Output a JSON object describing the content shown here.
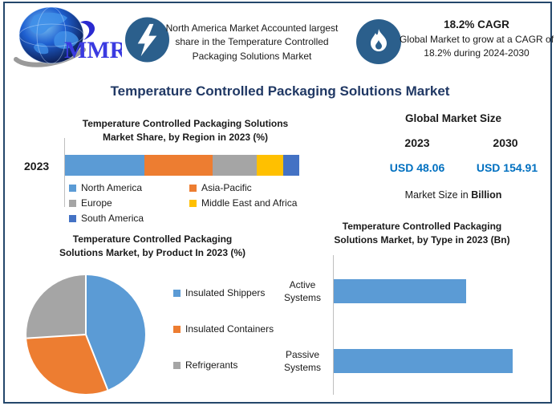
{
  "page": {
    "border_color": "#24476B",
    "background": "#FFFFFF"
  },
  "header": {
    "logo_text": "MMR",
    "icon_bg": "#2B5F8C",
    "banner1": {
      "icon": "lightning-icon",
      "text": "North America Market Accounted largest share in the Temperature Controlled Packaging Solutions Market"
    },
    "banner2": {
      "icon": "flame-icon",
      "title": "18.2% CAGR",
      "text": "Global Market to grow at a CAGR of 18.2% during 2024-2030"
    }
  },
  "main_title": "Temperature Controlled Packaging Solutions Market",
  "main_title_color": "#203864",
  "market_size": {
    "title": "Global Market Size",
    "year_left": "2023",
    "year_right": "2030",
    "value_left": "USD 48.06",
    "value_right": "USD 154.91",
    "value_color": "#0070C0",
    "note_prefix": "Market Size in ",
    "note_bold": "Billion"
  },
  "chart_data": [
    {
      "id": "region-share",
      "type": "bar",
      "subtype": "stacked-horizontal",
      "title": "Temperature Controlled Packaging Solutions Market Share, by Region in 2023 (%)",
      "categories": [
        "2023"
      ],
      "unit": "%",
      "series": [
        {
          "name": "North America",
          "value": 34,
          "color": "#5B9BD5"
        },
        {
          "name": "Asia-Pacific",
          "value": 29,
          "color": "#ED7D31"
        },
        {
          "name": "Europe",
          "value": 19,
          "color": "#A5A5A5"
        },
        {
          "name": "Middle East and Africa",
          "value": 11,
          "color": "#FFC000"
        },
        {
          "name": "South America",
          "value": 7,
          "color": "#4472C4"
        }
      ],
      "legend_position": "bottom"
    },
    {
      "id": "product-share",
      "type": "pie",
      "title": "Temperature Controlled Packaging Solutions Market, by Product In 2023 (%)",
      "unit": "%",
      "slices": [
        {
          "name": "Insulated Shippers",
          "value": 44,
          "color": "#5B9BD5"
        },
        {
          "name": "Insulated Containers",
          "value": 30,
          "color": "#ED7D31"
        },
        {
          "name": "Refrigerants",
          "value": 26,
          "color": "#A5A5A5"
        }
      ],
      "start_angle_deg": 0,
      "legend_position": "right"
    },
    {
      "id": "type-share",
      "type": "bar",
      "subtype": "horizontal",
      "title": "Temperature Controlled Packaging Solutions Market, by Type in 2023 (Bn)",
      "categories": [
        "Active Systems",
        "Passive Systems"
      ],
      "values_relative_to_max": [
        0.74,
        1.0
      ],
      "bar_color": "#5B9BD5",
      "axis_labels_hidden": true
    }
  ]
}
